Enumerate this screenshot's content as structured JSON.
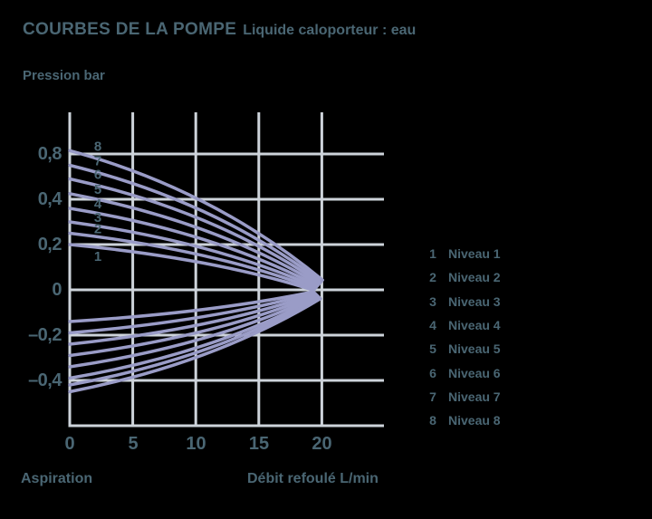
{
  "header": {
    "title": "COURBES DE LA POMPE",
    "subtitle": "Liquide caloporteur : eau"
  },
  "colors": {
    "background": "#000000",
    "text": "#4a6673",
    "grid": "#cdd3da",
    "curve": "#9a9cc7"
  },
  "chart_data": {
    "type": "line",
    "title": "COURBES DE LA POMPE",
    "subtitle": "Liquide caloporteur : eau",
    "y_axis_title": "Pression bar",
    "x_axis_title": "Débit refoulé L/min",
    "left_region_label": "Aspiration",
    "x_unit": "L/min",
    "y_unit": "bar",
    "x_ticks": [
      0,
      5,
      10,
      15,
      20
    ],
    "x_tick_labels": [
      "0",
      "5",
      "10",
      "15",
      "20"
    ],
    "y_ticks": [
      0.8,
      0.4,
      0.2,
      0,
      -0.2,
      -0.4
    ],
    "y_tick_labels": [
      "0,8",
      "0,4",
      "0,2",
      "0",
      "–0,2",
      "–0,4"
    ],
    "grid": true,
    "converge_flow_lmin": 20,
    "series": [
      {
        "level": 1,
        "name": "Niveau 1",
        "discharge_start_bar": 0.2,
        "suction_start_bar": -0.14
      },
      {
        "level": 2,
        "name": "Niveau 2",
        "discharge_start_bar": 0.25,
        "suction_start_bar": -0.19
      },
      {
        "level": 3,
        "name": "Niveau 3",
        "discharge_start_bar": 0.3,
        "suction_start_bar": -0.24
      },
      {
        "level": 4,
        "name": "Niveau 4",
        "discharge_start_bar": 0.36,
        "suction_start_bar": -0.29
      },
      {
        "level": 5,
        "name": "Niveau 5",
        "discharge_start_bar": 0.45,
        "suction_start_bar": -0.34
      },
      {
        "level": 6,
        "name": "Niveau 6",
        "discharge_start_bar": 0.58,
        "suction_start_bar": -0.39
      },
      {
        "level": 7,
        "name": "Niveau 7",
        "discharge_start_bar": 0.7,
        "suction_start_bar": -0.42
      },
      {
        "level": 8,
        "name": "Niveau 8",
        "discharge_start_bar": 0.83,
        "suction_start_bar": -0.45
      }
    ],
    "curve_number_labels": [
      "8",
      "7",
      "6",
      "5",
      "4",
      "3",
      "2",
      "1"
    ]
  },
  "legend": {
    "items": [
      {
        "num": "1",
        "label": "Niveau 1"
      },
      {
        "num": "2",
        "label": "Niveau 2"
      },
      {
        "num": "3",
        "label": "Niveau 3"
      },
      {
        "num": "4",
        "label": "Niveau 4"
      },
      {
        "num": "5",
        "label": "Niveau 5"
      },
      {
        "num": "6",
        "label": "Niveau 6"
      },
      {
        "num": "7",
        "label": "Niveau 7"
      },
      {
        "num": "8",
        "label": "Niveau 8"
      }
    ]
  }
}
